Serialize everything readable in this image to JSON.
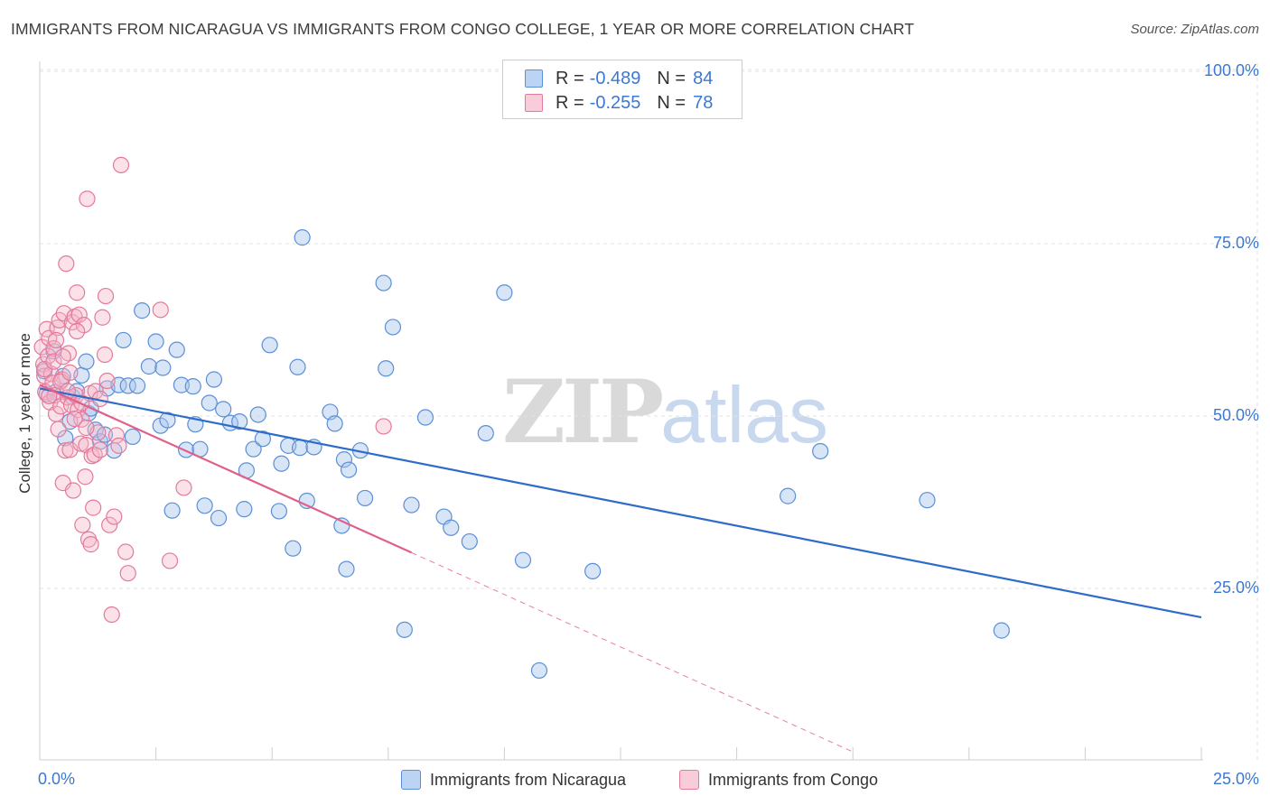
{
  "header": {
    "title": "IMMIGRANTS FROM NICARAGUA VS IMMIGRANTS FROM CONGO COLLEGE, 1 YEAR OR MORE CORRELATION CHART",
    "source": "Source: ZipAtlas.com"
  },
  "watermark": {
    "zip": "ZIP",
    "atlas": "atlas"
  },
  "legend": {
    "r_label": "R =",
    "n_label": "N =",
    "series": [
      {
        "r": "-0.489",
        "n": "84"
      },
      {
        "r": "-0.255",
        "n": "78"
      }
    ]
  },
  "colors": {
    "blue_fill": "#a8c6ee",
    "blue_stroke": "#5b8fd6",
    "blue_line": "#2f6cc9",
    "pink_fill": "#f4b6c8",
    "pink_stroke": "#e37a9c",
    "pink_line": "#e0608a",
    "grid": "#e3e3e3",
    "axis_text": "#3b78d4"
  },
  "chart_data": {
    "type": "scatter",
    "title": "IMMIGRANTS FROM NICARAGUA VS IMMIGRANTS FROM CONGO COLLEGE, 1 YEAR OR MORE CORRELATION CHART",
    "xlabel": "",
    "ylabel": "College, 1 year or more",
    "xlim": [
      0,
      25
    ],
    "ylim": [
      0,
      105
    ],
    "x_tick_labels": [
      "0.0%",
      "25.0%"
    ],
    "y_ticks": [
      {
        "value": 100,
        "label": "100.0%"
      },
      {
        "value": 75,
        "label": "75.0%"
      },
      {
        "value": 50,
        "label": "50.0%"
      },
      {
        "value": 25,
        "label": "25.0%"
      }
    ],
    "grid": true,
    "series": [
      {
        "name": "Immigrants from Nicaragua",
        "color": "#a8c6ee",
        "r": -0.489,
        "n": 84,
        "trend": {
          "x1": 0,
          "y1": 54.0,
          "x2": 25,
          "y2": 20.8,
          "dashed_extension": false
        },
        "points": [
          [
            0.1,
            56.5
          ],
          [
            0.15,
            53.2
          ],
          [
            0.3,
            59.4
          ],
          [
            0.35,
            53.5
          ],
          [
            0.5,
            55.8
          ],
          [
            0.55,
            46.8
          ],
          [
            0.65,
            49.2
          ],
          [
            0.7,
            52.8
          ],
          [
            0.8,
            53.6
          ],
          [
            0.9,
            55.9
          ],
          [
            1.0,
            57.9
          ],
          [
            1.05,
            50.4
          ],
          [
            1.1,
            51.1
          ],
          [
            1.2,
            48.0
          ],
          [
            1.3,
            46.3
          ],
          [
            1.4,
            47.3
          ],
          [
            1.45,
            54.0
          ],
          [
            1.6,
            45.0
          ],
          [
            1.7,
            54.5
          ],
          [
            1.8,
            61.0
          ],
          [
            1.9,
            54.4
          ],
          [
            2.1,
            54.4
          ],
          [
            2.2,
            65.3
          ],
          [
            2.35,
            57.2
          ],
          [
            2.5,
            60.8
          ],
          [
            2.6,
            48.6
          ],
          [
            2.65,
            57.0
          ],
          [
            2.75,
            49.4
          ],
          [
            2.85,
            36.3
          ],
          [
            2.95,
            59.6
          ],
          [
            3.05,
            54.5
          ],
          [
            3.15,
            45.1
          ],
          [
            3.3,
            54.3
          ],
          [
            3.35,
            48.8
          ],
          [
            3.45,
            45.2
          ],
          [
            3.55,
            37.0
          ],
          [
            3.65,
            51.9
          ],
          [
            3.75,
            55.3
          ],
          [
            3.85,
            35.2
          ],
          [
            3.95,
            51.0
          ],
          [
            4.1,
            49.0
          ],
          [
            4.3,
            49.2
          ],
          [
            4.4,
            36.5
          ],
          [
            4.45,
            42.1
          ],
          [
            4.6,
            45.2
          ],
          [
            4.7,
            50.2
          ],
          [
            4.8,
            46.7
          ],
          [
            4.95,
            60.3
          ],
          [
            5.15,
            36.2
          ],
          [
            5.2,
            43.1
          ],
          [
            5.35,
            45.7
          ],
          [
            5.45,
            30.8
          ],
          [
            5.55,
            57.1
          ],
          [
            5.6,
            45.4
          ],
          [
            5.65,
            75.9
          ],
          [
            5.75,
            37.7
          ],
          [
            5.9,
            45.5
          ],
          [
            6.25,
            50.6
          ],
          [
            6.35,
            48.9
          ],
          [
            6.5,
            34.1
          ],
          [
            6.55,
            43.7
          ],
          [
            6.6,
            27.8
          ],
          [
            6.65,
            42.2
          ],
          [
            6.9,
            45.0
          ],
          [
            7.0,
            38.1
          ],
          [
            7.4,
            69.3
          ],
          [
            7.45,
            56.9
          ],
          [
            7.6,
            62.9
          ],
          [
            7.85,
            19.0
          ],
          [
            8.0,
            37.1
          ],
          [
            8.3,
            49.8
          ],
          [
            8.7,
            35.4
          ],
          [
            8.85,
            33.8
          ],
          [
            9.25,
            31.8
          ],
          [
            9.6,
            47.5
          ],
          [
            10.0,
            67.9
          ],
          [
            10.4,
            29.1
          ],
          [
            10.75,
            13.1
          ],
          [
            11.9,
            27.5
          ],
          [
            16.1,
            38.4
          ],
          [
            16.8,
            44.9
          ],
          [
            19.1,
            37.8
          ],
          [
            20.7,
            18.9
          ],
          [
            2.0,
            47.0
          ]
        ]
      },
      {
        "name": "Immigrants from Congo",
        "color": "#f4b6c8",
        "r": -0.255,
        "n": 78,
        "trend": {
          "x1": 0,
          "y1": 54.5,
          "x2": 8.0,
          "y2": 30.2,
          "dash_to_x": 17.5,
          "dash_to_y": 1.3,
          "dashed_extension": true
        },
        "points": [
          [
            0.05,
            60.0
          ],
          [
            0.08,
            57.5
          ],
          [
            0.1,
            55.8
          ],
          [
            0.12,
            53.5
          ],
          [
            0.15,
            62.6
          ],
          [
            0.18,
            58.7
          ],
          [
            0.2,
            61.3
          ],
          [
            0.22,
            52.0
          ],
          [
            0.25,
            56.1
          ],
          [
            0.28,
            54.8
          ],
          [
            0.3,
            59.8
          ],
          [
            0.32,
            53.0
          ],
          [
            0.35,
            50.3
          ],
          [
            0.38,
            62.8
          ],
          [
            0.4,
            48.1
          ],
          [
            0.42,
            63.9
          ],
          [
            0.45,
            51.4
          ],
          [
            0.48,
            55.3
          ],
          [
            0.5,
            40.3
          ],
          [
            0.52,
            64.9
          ],
          [
            0.55,
            45.0
          ],
          [
            0.57,
            72.1
          ],
          [
            0.6,
            52.7
          ],
          [
            0.62,
            59.1
          ],
          [
            0.65,
            45.1
          ],
          [
            0.68,
            51.6
          ],
          [
            0.7,
            63.6
          ],
          [
            0.72,
            39.2
          ],
          [
            0.75,
            64.4
          ],
          [
            0.78,
            53.0
          ],
          [
            0.8,
            67.9
          ],
          [
            0.82,
            50.9
          ],
          [
            0.85,
            64.7
          ],
          [
            0.88,
            46.0
          ],
          [
            0.9,
            49.5
          ],
          [
            0.92,
            34.2
          ],
          [
            0.95,
            63.2
          ],
          [
            0.98,
            41.2
          ],
          [
            1.0,
            45.8
          ],
          [
            1.02,
            81.5
          ],
          [
            1.05,
            32.1
          ],
          [
            1.08,
            53.3
          ],
          [
            1.1,
            31.4
          ],
          [
            1.12,
            44.2
          ],
          [
            1.15,
            36.7
          ],
          [
            1.18,
            44.4
          ],
          [
            1.2,
            53.6
          ],
          [
            1.25,
            47.6
          ],
          [
            1.3,
            45.1
          ],
          [
            1.35,
            64.3
          ],
          [
            1.4,
            58.9
          ],
          [
            1.42,
            67.4
          ],
          [
            1.45,
            55.1
          ],
          [
            1.5,
            34.2
          ],
          [
            1.55,
            21.2
          ],
          [
            1.6,
            35.4
          ],
          [
            1.65,
            47.2
          ],
          [
            1.7,
            45.7
          ],
          [
            1.75,
            86.4
          ],
          [
            1.85,
            30.3
          ],
          [
            1.9,
            27.2
          ],
          [
            2.6,
            65.4
          ],
          [
            2.8,
            29.0
          ],
          [
            3.1,
            39.6
          ],
          [
            7.4,
            48.5
          ],
          [
            0.1,
            56.8
          ],
          [
            0.2,
            52.9
          ],
          [
            0.3,
            57.9
          ],
          [
            0.45,
            55.0
          ],
          [
            0.6,
            53.6
          ],
          [
            0.75,
            49.6
          ],
          [
            0.9,
            51.9
          ],
          [
            1.0,
            48.3
          ],
          [
            0.35,
            61.0
          ],
          [
            0.5,
            58.6
          ],
          [
            0.65,
            56.3
          ],
          [
            0.8,
            62.3
          ],
          [
            1.3,
            52.5
          ]
        ]
      }
    ]
  },
  "bottom_legend": {
    "items": [
      {
        "label": "Immigrants from Nicaragua"
      },
      {
        "label": "Immigrants from Congo"
      }
    ]
  }
}
